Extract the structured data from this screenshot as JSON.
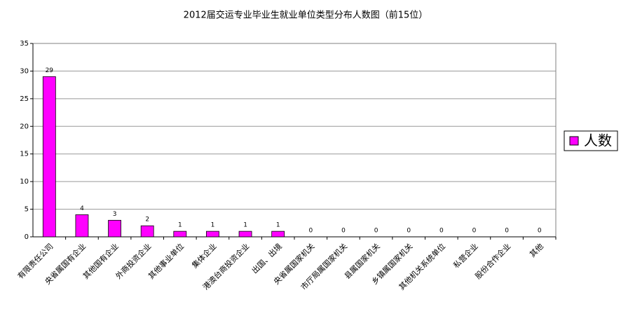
{
  "chart_data": {
    "type": "bar",
    "title": "2012届交运专业毕业生就业单位类型分布人数图（前15位）",
    "categories": [
      "有限责任公司",
      "央省属国有企业",
      "其他国有企业",
      "外商投资企业",
      "其他事业单位",
      "集体企业",
      "港澳台商投资企业",
      "出国、出境",
      "央省属国家机关",
      "市厅局属国家机关",
      "县属国家机关",
      "乡镇属国家机关",
      "其他机关系统单位",
      "私营企业",
      "股份合作企业",
      "其他"
    ],
    "series": [
      {
        "name": "人数",
        "color": "#ff00ff",
        "values": [
          29,
          4,
          3,
          2,
          1,
          1,
          1,
          1,
          0,
          0,
          0,
          0,
          0,
          0,
          0,
          0
        ]
      }
    ],
    "ylim": [
      0,
      35
    ],
    "yticks": [
      0,
      5,
      10,
      15,
      20,
      25,
      30,
      35
    ],
    "grid": true,
    "legend": "right",
    "data_labels": true
  }
}
